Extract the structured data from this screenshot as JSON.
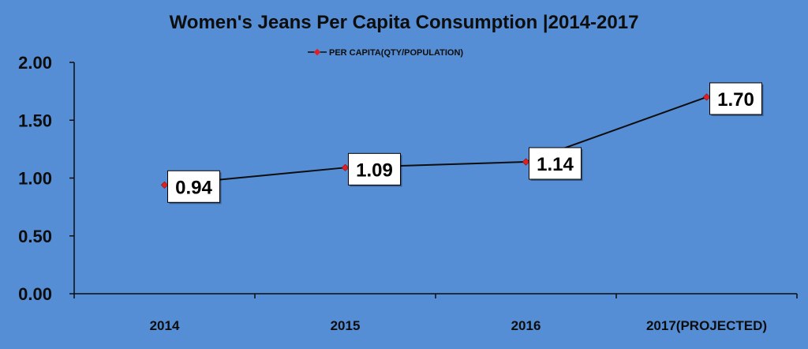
{
  "chart_data": {
    "type": "line",
    "title": "Women's Jeans Per Capita Consumption  |2014-2017",
    "xlabel": "",
    "ylabel": "",
    "categories": [
      "2014",
      "2015",
      "2016",
      "2017(PROJECTED)"
    ],
    "series": [
      {
        "name": "PER CAPITA(QTY/POPULATION)",
        "values": [
          0.94,
          1.09,
          1.14,
          1.7
        ],
        "labels": [
          "0.94",
          "1.09",
          "1.14",
          "1.70"
        ]
      }
    ],
    "ylim": [
      0,
      2
    ],
    "yticks": [
      "0.00",
      "0.50",
      "1.00",
      "1.50",
      "2.00"
    ],
    "grid": false,
    "legend_position": "top-center",
    "colors": {
      "background": "#558ed5",
      "line": "#0d0d0d",
      "marker": "#e02020",
      "label_box": "#ffffff",
      "axis": "#0d0d0d"
    }
  }
}
